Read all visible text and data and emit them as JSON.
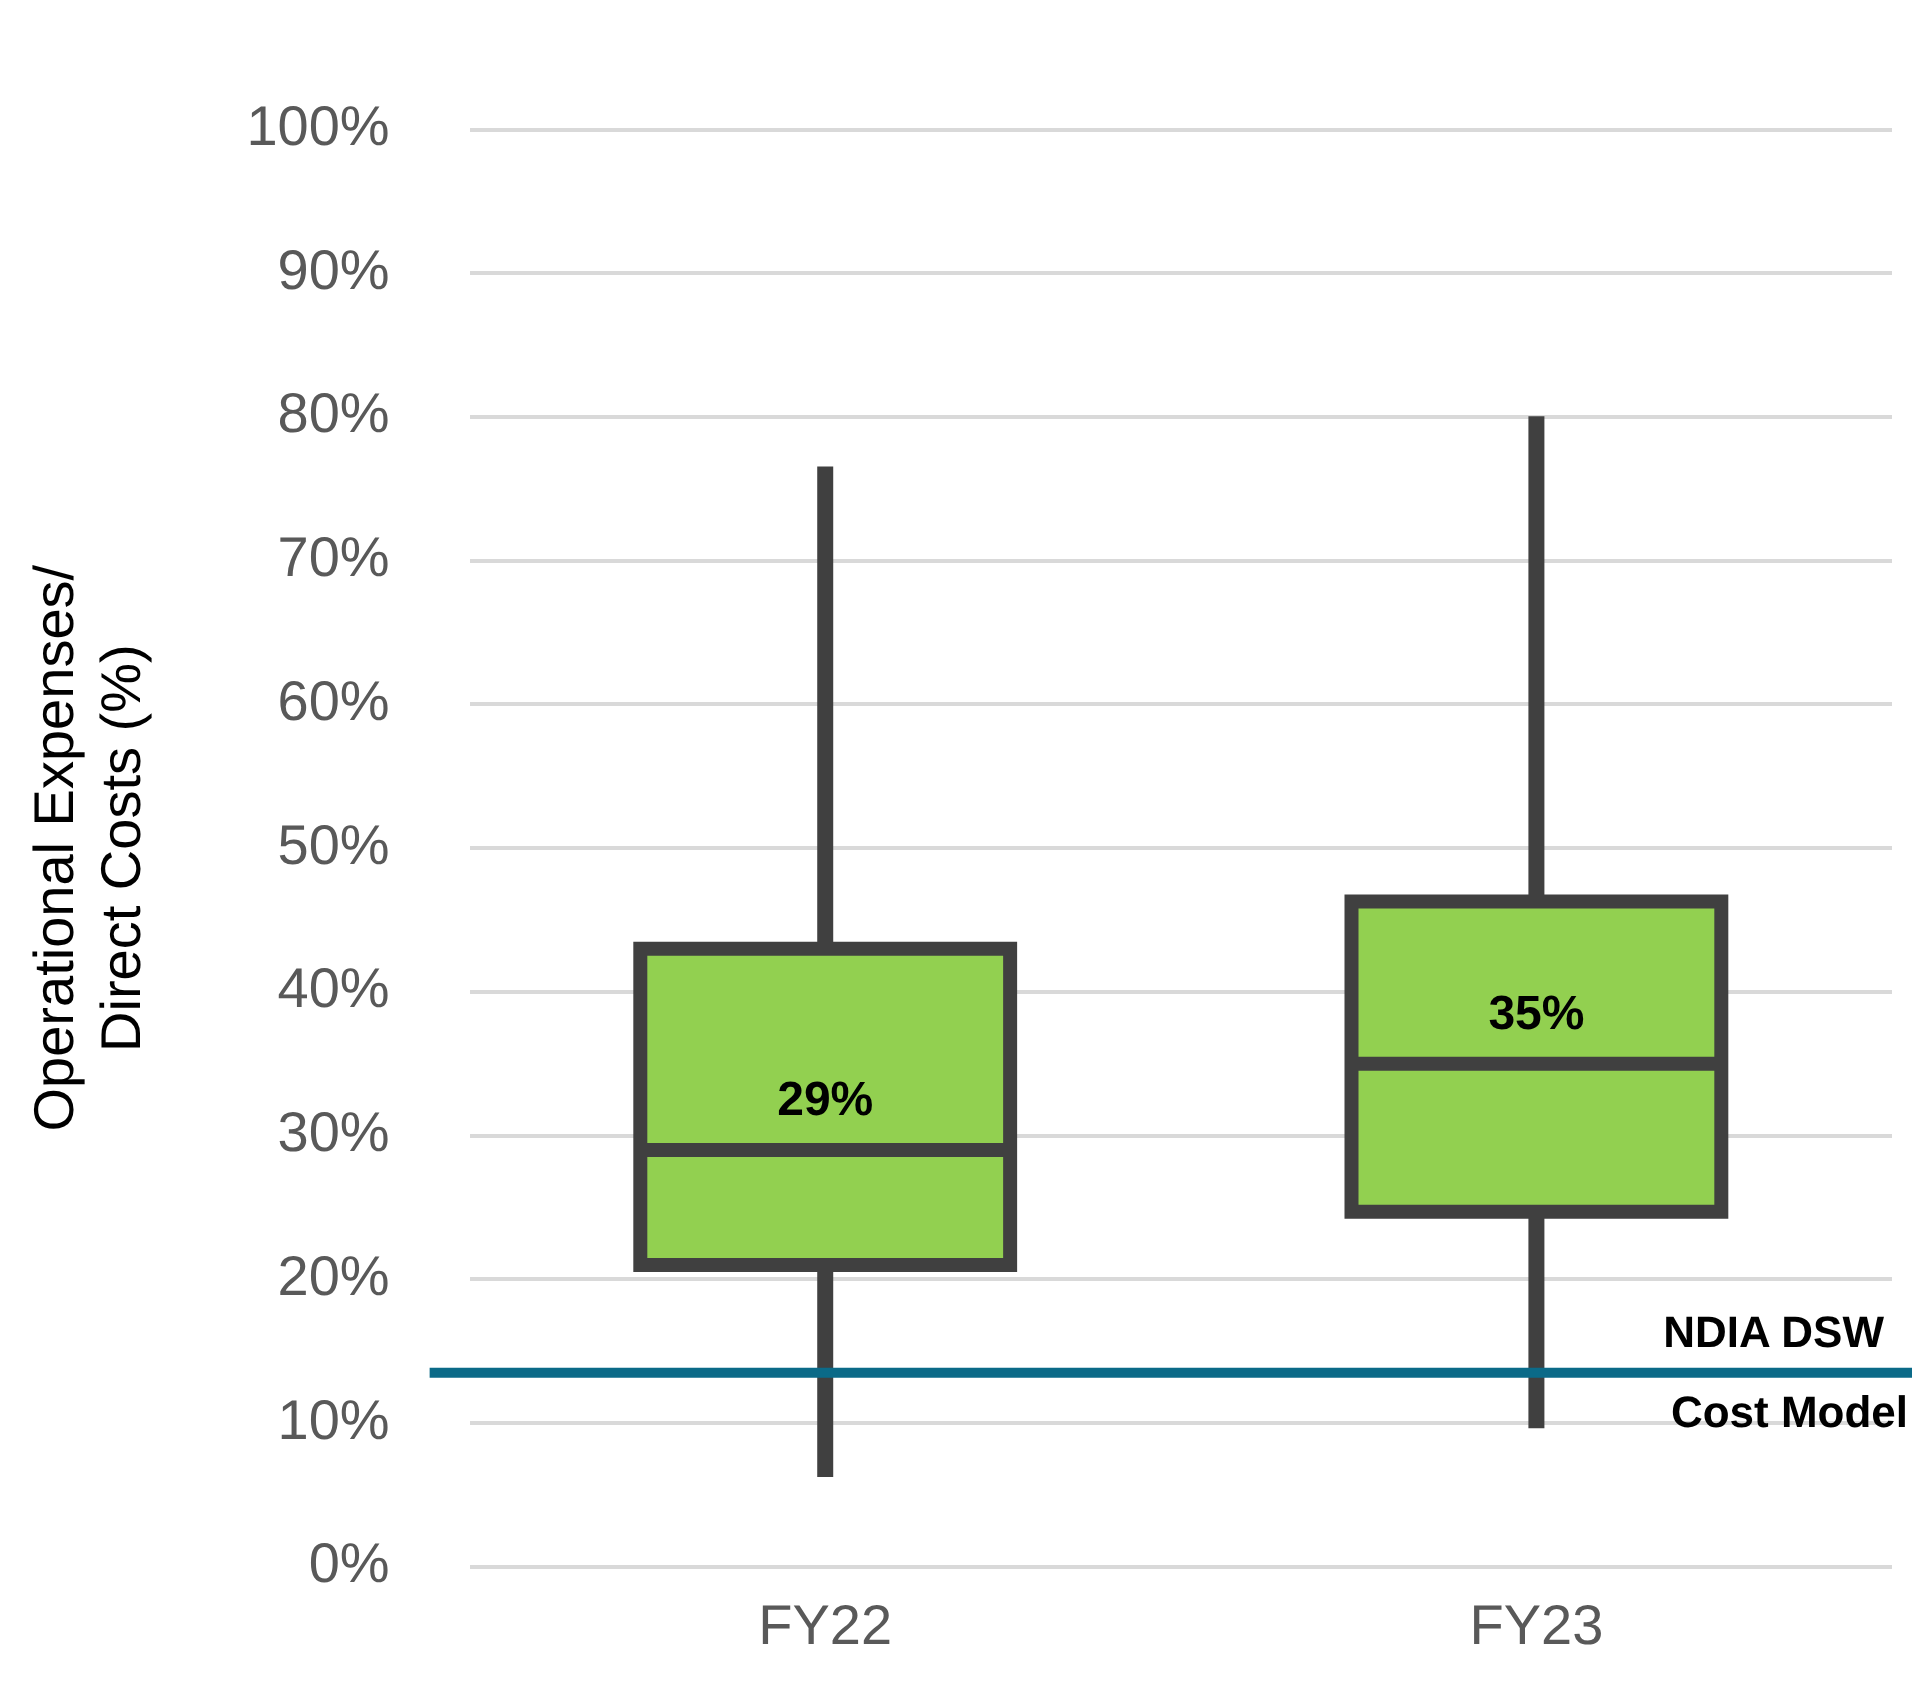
{
  "chart_data": {
    "type": "box",
    "ylabel": "Operational Expenses/ Direct Costs (%)",
    "categories": [
      "FY22",
      "FY23"
    ],
    "boxes": [
      {
        "low": 6.8,
        "q1": 21,
        "median": 29,
        "q3": 43,
        "high": 76
      },
      {
        "low": 10.2,
        "q1": 24.7,
        "median": 35,
        "q3": 46.3,
        "high": 79.5
      }
    ],
    "value_labels": [
      "29%",
      "35%"
    ],
    "color": "#92d050",
    "ylim": [
      0,
      100
    ],
    "yticks": [
      {
        "value": 0,
        "label": "0%"
      },
      {
        "value": 10,
        "label": "10%"
      },
      {
        "value": 20,
        "label": "20%"
      },
      {
        "value": 30,
        "label": "30%"
      },
      {
        "value": 40,
        "label": "40%"
      },
      {
        "value": 50,
        "label": "50%"
      },
      {
        "value": 60,
        "label": "60%"
      },
      {
        "value": 70,
        "label": "70%"
      },
      {
        "value": 80,
        "label": "80%"
      },
      {
        "value": 90,
        "label": "90%"
      },
      {
        "value": 100,
        "label": "100%"
      }
    ],
    "ref_lines": [
      {
        "axis": "y",
        "value": 13.5,
        "label": "NDIA DSW Cost Model",
        "color": "#0b6a88"
      }
    ],
    "grid": "y",
    "legend": false
  }
}
